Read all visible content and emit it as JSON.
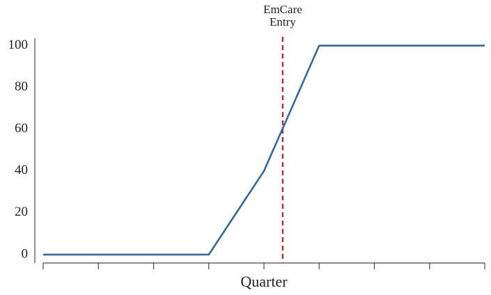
{
  "chart_data": {
    "type": "line",
    "x_label": "Quarter",
    "categories": [
      null,
      null,
      null,
      null,
      null,
      null,
      null,
      null,
      null
    ],
    "series": [
      {
        "name": null,
        "color": "#2f6aa5",
        "values": [
          0,
          0,
          0,
          0,
          40,
          100,
          100,
          100,
          100
        ]
      }
    ],
    "ylim": [
      -4,
      103.5
    ],
    "yticks": [
      0,
      20,
      40,
      60,
      80,
      100
    ],
    "annotations": [
      {
        "type": "vline",
        "x": 4.34,
        "color": "#c0282d",
        "text": [
          "EmCare",
          "Entry"
        ]
      }
    ]
  }
}
